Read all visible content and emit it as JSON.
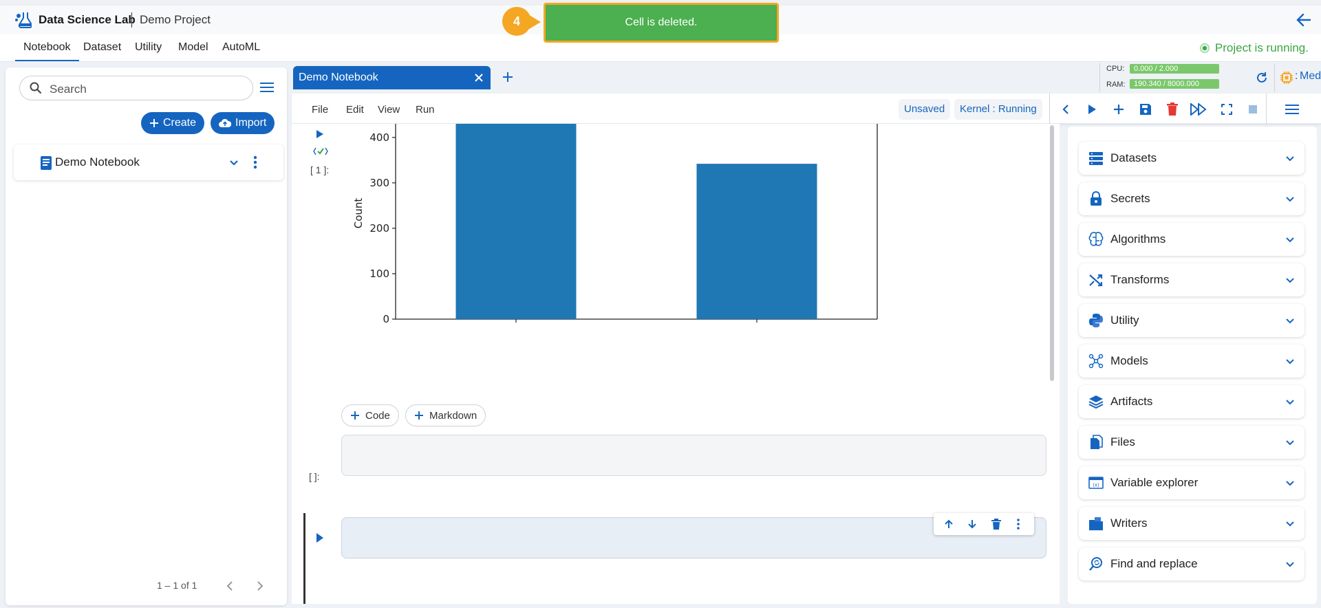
{
  "header": {
    "app_title": "Data Science Lab",
    "project_name": "Demo Project"
  },
  "menu": {
    "items": [
      "Notebook",
      "Dataset",
      "Utility",
      "Model",
      "AutoML"
    ],
    "status": "Project is running."
  },
  "left_panel": {
    "search_placeholder": "Search",
    "create_label": "Create",
    "import_label": "Import",
    "notebook_name": "Demo Notebook",
    "pagination": "1 – 1 of 1"
  },
  "tab": {
    "title": "Demo Notebook"
  },
  "resources": {
    "cpu_label": "CPU:",
    "cpu_value": "0.000 / 2.000",
    "ram_label": "RAM:",
    "ram_value": "190.340 / 8000.000",
    "size_prefix": ":",
    "size_label": "Medium"
  },
  "toolbar": {
    "menus": [
      "File",
      "Edit",
      "View",
      "Run"
    ],
    "save_state": "Unsaved",
    "kernel_status": "Kernel : Running"
  },
  "cells": {
    "executed_prompt": "[ 1 ]:",
    "empty_prompt": "[   ]:",
    "add_code_label": "Code",
    "add_markdown_label": "Markdown"
  },
  "chart_data": {
    "type": "bar",
    "ylabel": "Count",
    "ylim": [
      0,
      430
    ],
    "yticks": [
      0,
      100,
      200,
      300,
      400
    ],
    "values": [
      430,
      342
    ],
    "categories": [
      "",
      ""
    ],
    "color": "#1f77b4"
  },
  "right_panel": {
    "sections": [
      {
        "label": "Datasets",
        "icon": "datasets-icon"
      },
      {
        "label": "Secrets",
        "icon": "secrets-icon"
      },
      {
        "label": "Algorithms",
        "icon": "algorithms-icon"
      },
      {
        "label": "Transforms",
        "icon": "transforms-icon"
      },
      {
        "label": "Utility",
        "icon": "utility-icon"
      },
      {
        "label": "Models",
        "icon": "models-icon"
      },
      {
        "label": "Artifacts",
        "icon": "artifacts-icon"
      },
      {
        "label": "Files",
        "icon": "files-icon"
      },
      {
        "label": "Variable explorer",
        "icon": "variable-explorer-icon"
      },
      {
        "label": "Writers",
        "icon": "writers-icon"
      },
      {
        "label": "Find and replace",
        "icon": "find-replace-icon"
      }
    ]
  },
  "toast": {
    "step": "4",
    "message": "Cell is deleted."
  },
  "colors": {
    "primary": "#1565c0",
    "success": "#4caf50",
    "highlight": "#f5a623",
    "danger": "#e53935"
  }
}
